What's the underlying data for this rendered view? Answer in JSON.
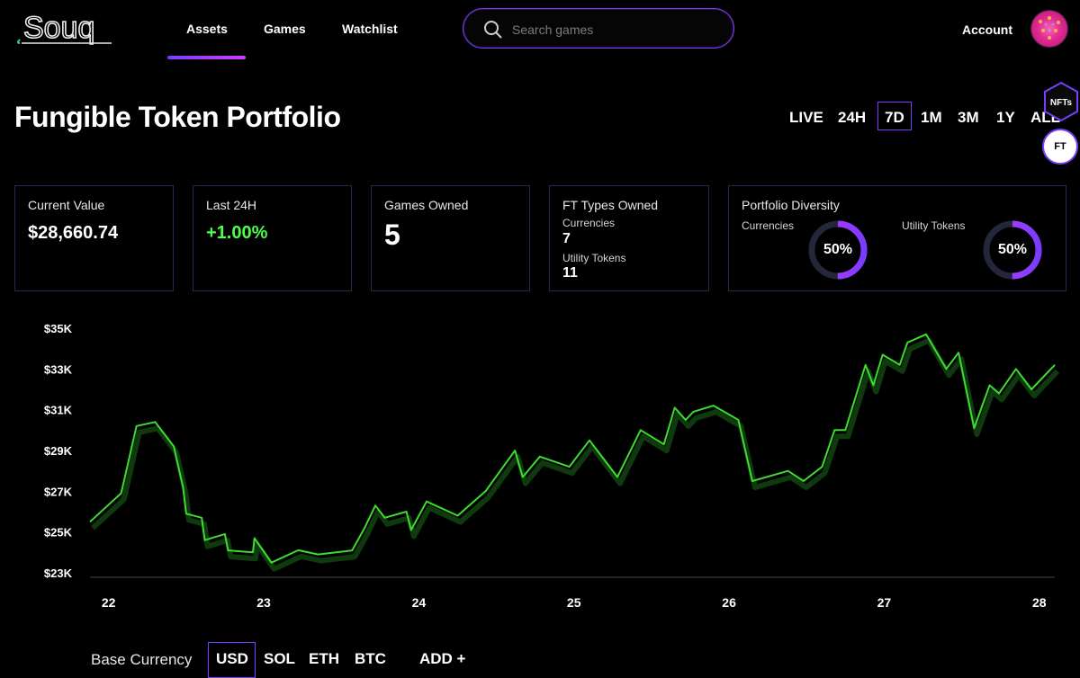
{
  "header": {
    "logo_text": "Souq",
    "nav": [
      {
        "label": "Assets",
        "active": true
      },
      {
        "label": "Games"
      },
      {
        "label": "Watchlist"
      }
    ],
    "search_placeholder": "Search games",
    "account_label": "Account"
  },
  "page_title": "Fungible Token Portfolio",
  "time_ranges": [
    "LIVE",
    "24H",
    "7D",
    "1M",
    "3M",
    "1Y",
    "ALL"
  ],
  "selected_range": "7D",
  "side_toggle": {
    "nfts": "NFTs",
    "ft": "FT"
  },
  "cards": {
    "current_value": {
      "label": "Current Value",
      "value": "$28,660.74"
    },
    "last_24h": {
      "label": "Last 24H",
      "value": "+1.00%"
    },
    "games_owned": {
      "label": "Games Owned",
      "value": "5"
    },
    "ft_types": {
      "label": "FT Types Owned",
      "currencies_label": "Currencies",
      "currencies_value": "7",
      "utility_label": "Utility Tokens",
      "utility_value": "11"
    },
    "diversity": {
      "label": "Portfolio Diversity",
      "currencies_label": "Currencies",
      "currencies_pct": "50%",
      "currencies_fraction": 0.5,
      "utility_label": "Utility Tokens",
      "utility_pct": "50%",
      "utility_fraction": 0.5
    }
  },
  "colors": {
    "accent": "#7a3cff",
    "accent2": "#d13cff",
    "positive": "#4cff4c",
    "line": "#3ddc2f",
    "card_border": "#232a4a"
  },
  "chart_data": {
    "type": "line",
    "y_ticks": [
      "$35K",
      "$33K",
      "$31K",
      "$29K",
      "$27K",
      "$25K",
      "$23K"
    ],
    "x_ticks": [
      "22",
      "23",
      "24",
      "25",
      "26",
      "27",
      "28"
    ],
    "ylim": [
      23,
      35
    ],
    "xlim": [
      21.88,
      28.1
    ],
    "series": [
      {
        "x": [
          21.88,
          22.08,
          22.09,
          22.18,
          22.3,
          22.42,
          22.48,
          22.5,
          22.6,
          22.62,
          22.75,
          22.77,
          22.93,
          22.94,
          23.05,
          23.22,
          23.23,
          23.35,
          23.57,
          23.65,
          23.72,
          23.78,
          23.92,
          23.95,
          24.05,
          24.25,
          24.43,
          24.62,
          24.67,
          24.78,
          24.97,
          25.1,
          25.28,
          25.43,
          25.58,
          25.65,
          25.72,
          25.77,
          25.9,
          26.06,
          26.15,
          26.38,
          26.48,
          26.6,
          26.68,
          26.75,
          26.88,
          26.93,
          26.99,
          27.1,
          27.15,
          27.27,
          27.4,
          27.48,
          27.58,
          27.68,
          27.74,
          27.85,
          27.95,
          28.1
        ],
        "y": [
          25.5,
          26.9,
          27.2,
          30.2,
          30.4,
          29.2,
          27.2,
          25.9,
          25.7,
          24.6,
          24.9,
          24.1,
          24.0,
          24.7,
          23.5,
          24.1,
          24.1,
          23.9,
          24.1,
          25.2,
          26.3,
          25.7,
          26.0,
          25.1,
          26.5,
          25.8,
          27.0,
          29.0,
          27.7,
          28.7,
          28.2,
          29.5,
          27.7,
          30.0,
          29.3,
          31.1,
          30.5,
          30.9,
          31.2,
          30.5,
          27.5,
          28.0,
          27.5,
          28.2,
          30.0,
          30.0,
          33.2,
          32.2,
          33.7,
          33.2,
          34.3,
          34.7,
          33.0,
          33.8,
          30.1,
          32.2,
          31.8,
          33.0,
          32.0,
          33.2
        ]
      }
    ]
  },
  "currencies": [
    "USD",
    "SOL",
    "ETH",
    "BTC",
    "ADD +"
  ],
  "base_currency_label": "Base Currency",
  "selected_currency": "USD"
}
